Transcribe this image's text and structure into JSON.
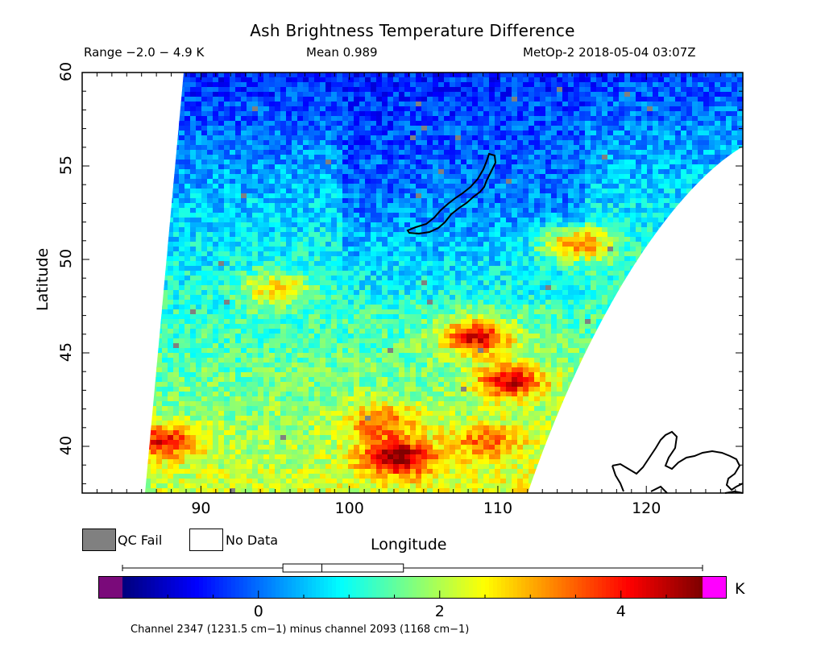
{
  "header": {
    "title": "Ash Brightness Temperature Difference",
    "range": "Range −2.0 − 4.9 K",
    "mean": "Mean 0.989",
    "satellite": "MetOp-2 2018-05-04 03:07Z"
  },
  "axes": {
    "y_label": "Latitude",
    "x_label": "Longitude",
    "y_ticks": [
      "60",
      "55",
      "50",
      "45",
      "40"
    ],
    "x_ticks": [
      "90",
      "100",
      "110",
      "120"
    ],
    "x_range": [
      82,
      126.5
    ],
    "y_range": [
      37.5,
      60
    ]
  },
  "legend": {
    "qc_fail": "QC Fail",
    "no_data": "No Data",
    "qc_color": "#808080"
  },
  "colorbar": {
    "ticks": [
      "0",
      "2",
      "4"
    ],
    "unit": "K",
    "min": -1.5,
    "max": 4.9,
    "below_color": "#7a0a7a",
    "above_color": "#ff00ff"
  },
  "boxplot": {
    "whisker_low": -1.5,
    "q1": 0.27,
    "median": 0.7,
    "q3": 1.6,
    "whisker_high": 4.9
  },
  "footer": {
    "channel_text": "Channel 2347 (1231.5 cm−1) minus channel 2093 (1168 cm−1)"
  }
}
